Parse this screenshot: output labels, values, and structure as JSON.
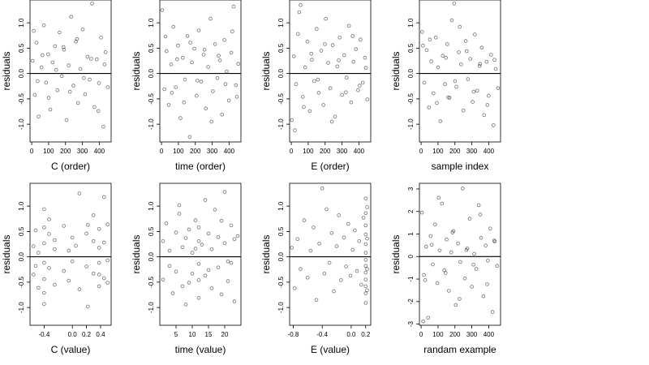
{
  "figure": {
    "ylabel": "residuals",
    "point_color": "#000000",
    "point_style": "open-circle",
    "zero_line_color": "#000000"
  },
  "chart_data": [
    {
      "type": "scatter",
      "xlabel": "C (order)",
      "ylabel": "residuals",
      "xlim": [
        -10,
        470
      ],
      "ylim": [
        -1.35,
        1.45
      ],
      "xticks": [
        0,
        100,
        200,
        300,
        400
      ],
      "xtick_labels": [
        "0",
        "100",
        "200",
        "300",
        "400"
      ],
      "yticks": [
        -1.0,
        -0.5,
        0.0,
        0.5,
        1.0
      ],
      "ytick_labels": [
        "-1.0",
        "-0.5",
        "0.0",
        "0.5",
        "1.0"
      ],
      "hline": 0,
      "x": [
        5,
        18,
        29,
        41,
        58,
        72,
        85,
        97,
        110,
        124,
        138,
        152,
        165,
        178,
        191,
        206,
        219,
        233,
        247,
        261,
        274,
        288,
        302,
        316,
        330,
        343,
        357,
        371,
        385,
        398,
        410,
        424,
        437,
        450,
        12,
        35,
        64,
        101,
        145,
        188,
        226,
        268,
        309,
        352,
        394,
        431
      ],
      "y": [
        0.25,
        -0.42,
        0.61,
        -0.85,
        0.12,
        0.95,
        -0.18,
        0.38,
        -0.71,
        0.22,
        0.54,
        -0.33,
        0.81,
        -0.05,
        0.47,
        -0.92,
        0.16,
        1.12,
        -0.24,
        0.63,
        -0.58,
        0.09,
        0.87,
        -0.41,
        0.33,
        -0.12,
        1.38,
        -0.66,
        0.28,
        -0.19,
        0.71,
        -1.05,
        0.42,
        -0.27,
        0.84,
        -0.15,
        0.36,
        -0.48,
        0.07,
        0.52,
        -0.36,
        0.68,
        -0.09,
        0.29,
        -0.74,
        0.18
      ]
    },
    {
      "type": "scatter",
      "xlabel": "time (order)",
      "ylabel": "residuals",
      "xlim": [
        -10,
        470
      ],
      "ylim": [
        -1.35,
        1.45
      ],
      "xticks": [
        0,
        100,
        200,
        300,
        400
      ],
      "xtick_labels": [
        "0",
        "100",
        "200",
        "300",
        "400"
      ],
      "yticks": [
        -1.0,
        -0.5,
        0.0,
        0.5,
        1.0
      ],
      "ytick_labels": [
        "-1.0",
        "-0.5",
        "0.0",
        "0.5",
        "1.0"
      ],
      "hline": 0,
      "x": [
        4,
        17,
        30,
        43,
        57,
        70,
        84,
        98,
        112,
        126,
        139,
        153,
        167,
        180,
        194,
        208,
        221,
        235,
        249,
        262,
        276,
        290,
        304,
        317,
        331,
        345,
        358,
        372,
        386,
        399,
        413,
        427,
        440,
        454,
        24,
        61,
        92,
        133,
        171,
        212,
        255,
        296,
        338,
        379,
        419,
        446
      ],
      "y": [
        1.25,
        -0.31,
        0.44,
        -0.62,
        0.18,
        0.92,
        -0.27,
        0.55,
        -0.88,
        0.31,
        -0.12,
        0.74,
        -1.25,
        0.22,
        0.49,
        -0.44,
        0.85,
        -0.16,
        0.37,
        -0.69,
        0.13,
        1.08,
        -0.35,
        0.58,
        -0.09,
        0.26,
        -0.81,
        0.66,
        0.04,
        -0.53,
        0.41,
        1.32,
        -0.23,
        0.19,
        0.73,
        -0.38,
        0.28,
        -0.57,
        0.61,
        -0.14,
        0.47,
        -0.95,
        0.35,
        -0.21,
        0.83,
        -0.46
      ]
    },
    {
      "type": "scatter",
      "xlabel": "E (order)",
      "ylabel": "residuals",
      "xlim": [
        -10,
        470
      ],
      "ylim": [
        -1.35,
        1.45
      ],
      "xticks": [
        0,
        100,
        200,
        300,
        400
      ],
      "xtick_labels": [
        "0",
        "100",
        "200",
        "300",
        "400"
      ],
      "yticks": [
        -1.0,
        -0.5,
        0.0,
        0.5,
        1.0
      ],
      "ytick_labels": [
        "-1.0",
        "-0.5",
        "0.0",
        "0.5",
        "1.0"
      ],
      "hline": 0,
      "x": [
        3,
        15,
        28,
        40,
        55,
        68,
        82,
        95,
        109,
        122,
        136,
        150,
        163,
        177,
        190,
        204,
        218,
        231,
        245,
        259,
        272,
        286,
        300,
        313,
        327,
        341,
        354,
        368,
        382,
        395,
        409,
        423,
        436,
        450,
        47,
        74,
        118,
        157,
        199,
        240,
        281,
        323,
        363,
        404,
        441,
        21
      ],
      "y": [
        -0.92,
        0.34,
        -0.21,
        0.78,
        1.35,
        -0.46,
        0.12,
        0.63,
        -0.74,
        0.27,
        -0.15,
        0.88,
        -0.38,
        0.45,
        -0.62,
        1.08,
        0.21,
        -0.29,
        0.56,
        -0.85,
        0.14,
        0.71,
        -0.42,
        0.36,
        -0.08,
        0.94,
        -0.57,
        0.23,
        0.48,
        -0.33,
        0.67,
        -0.18,
        0.31,
        -0.51,
        1.21,
        -0.66,
        0.39,
        -0.12,
        0.58,
        -0.95,
        0.26,
        -0.37,
        0.74,
        -0.24,
        0.11,
        -1.12
      ]
    },
    {
      "type": "scatter",
      "xlabel": "sample index",
      "ylabel": "residuals",
      "xlim": [
        -10,
        470
      ],
      "ylim": [
        -1.35,
        1.45
      ],
      "xticks": [
        0,
        100,
        200,
        300,
        400
      ],
      "xtick_labels": [
        "0",
        "100",
        "200",
        "300",
        "400"
      ],
      "yticks": [
        -1.0,
        -0.5,
        0.0,
        0.5,
        1.0
      ],
      "ytick_labels": [
        "-1.0",
        "-0.5",
        "0.0",
        "0.5",
        "1.0"
      ],
      "hline": 0,
      "x": [
        6,
        19,
        33,
        46,
        60,
        73,
        87,
        100,
        114,
        128,
        141,
        155,
        168,
        182,
        196,
        209,
        223,
        236,
        250,
        264,
        277,
        291,
        305,
        318,
        332,
        346,
        359,
        373,
        387,
        400,
        414,
        428,
        441,
        455,
        52,
        93,
        147,
        201,
        229,
        270,
        311,
        349,
        392,
        434,
        11,
        161
      ],
      "y": [
        0.82,
        -0.18,
        0.46,
        -0.67,
        0.24,
        -0.39,
        0.71,
        0.12,
        -0.94,
        0.35,
        -0.21,
        0.58,
        -0.48,
        1.05,
        1.38,
        -0.26,
        0.42,
        0.18,
        -0.73,
        0.64,
        -0.11,
        0.29,
        -0.56,
        0.77,
        -0.34,
        0.15,
        0.51,
        -0.82,
        0.23,
        -0.44,
        0.37,
        -1.02,
        0.09,
        -0.29,
        0.67,
        -0.58,
        0.31,
        -0.15,
        0.92,
        0.44,
        -0.36,
        0.19,
        -0.62,
        0.27,
        0.55,
        -0.47
      ]
    },
    {
      "type": "scatter",
      "xlabel": "C (value)",
      "ylabel": "residuals",
      "xlim": [
        -0.6,
        0.55
      ],
      "ylim": [
        -1.35,
        1.45
      ],
      "xticks": [
        -0.4,
        0.0,
        0.2,
        0.4
      ],
      "xtick_labels": [
        "-0.4",
        "0.0",
        "0.2",
        "0.4"
      ],
      "yticks": [
        -1.0,
        -0.5,
        0.0,
        0.5,
        1.0
      ],
      "ytick_labels": [
        "-1.0",
        "-0.5",
        "0.0",
        "0.5",
        "1.0"
      ],
      "hline": 0,
      "x": [
        -0.55,
        -0.55,
        -0.52,
        -0.52,
        -0.48,
        -0.48,
        -0.4,
        -0.4,
        -0.4,
        -0.4,
        -0.4,
        -0.4,
        -0.4,
        -0.33,
        -0.33,
        -0.33,
        -0.25,
        -0.25,
        -0.25,
        -0.12,
        -0.12,
        -0.05,
        -0.05,
        0.0,
        0.0,
        0.05,
        0.1,
        0.1,
        0.2,
        0.2,
        0.22,
        0.22,
        0.3,
        0.3,
        0.3,
        0.38,
        0.38,
        0.38,
        0.38,
        0.38,
        0.45,
        0.45,
        0.45,
        0.5,
        0.5,
        0.5
      ],
      "y": [
        0.21,
        -0.35,
        0.52,
        -0.18,
        0.08,
        -0.61,
        0.94,
        0.58,
        0.27,
        -0.12,
        -0.44,
        -0.71,
        -0.93,
        0.45,
        -0.22,
        0.74,
        -0.55,
        0.15,
        0.33,
        0.61,
        -0.28,
        0.12,
        -0.47,
        0.38,
        -0.09,
        0.22,
        1.25,
        -0.64,
        0.46,
        -0.19,
        -0.98,
        0.63,
        0.31,
        -0.33,
        0.82,
        0.55,
        0.18,
        -0.12,
        -0.35,
        -0.58,
        1.18,
        0.28,
        -0.42,
        0.64,
        -0.07,
        -0.51
      ]
    },
    {
      "type": "scatter",
      "xlabel": "time (value)",
      "ylabel": "residuals",
      "xlim": [
        0,
        25
      ],
      "ylim": [
        -1.35,
        1.45
      ],
      "xticks": [
        5,
        10,
        15,
        20
      ],
      "xtick_labels": [
        "5",
        "10",
        "15",
        "20"
      ],
      "yticks": [
        -1.0,
        -0.5,
        0.0,
        0.5,
        1.0
      ],
      "ytick_labels": [
        "-1.0",
        "-0.5",
        "0.0",
        "0.5",
        "1.0"
      ],
      "hline": 0,
      "x": [
        1,
        1,
        2,
        3,
        3,
        4,
        5,
        5,
        6,
        7,
        7,
        8,
        8,
        9,
        10,
        10,
        11,
        12,
        12,
        12,
        12,
        12,
        13,
        14,
        14,
        15,
        16,
        16,
        17,
        18,
        18,
        19,
        20,
        20,
        21,
        22,
        22,
        23,
        23,
        6,
        9,
        11,
        15,
        19,
        21,
        24
      ],
      "y": [
        0.31,
        -0.45,
        0.66,
        -0.18,
        0.12,
        -0.72,
        0.48,
        -0.29,
        0.85,
        0.19,
        -0.58,
        0.37,
        -0.94,
        0.54,
        0.08,
        -0.33,
        0.72,
        0.58,
        0.31,
        -0.14,
        -0.46,
        -0.81,
        0.24,
        1.12,
        -0.37,
        0.46,
        -0.62,
        0.15,
        0.93,
        -0.21,
        0.39,
        -0.74,
        1.28,
        0.27,
        -0.48,
        0.62,
        -0.12,
        0.35,
        -0.88,
        1.02,
        -0.51,
        0.16,
        -0.26,
        0.71,
        -0.09,
        0.41
      ]
    },
    {
      "type": "scatter",
      "xlabel": "E (value)",
      "ylabel": "residuals",
      "xlim": [
        -0.85,
        0.27
      ],
      "ylim": [
        -1.35,
        1.45
      ],
      "xticks": [
        -0.8,
        -0.4,
        0.0,
        0.2
      ],
      "xtick_labels": [
        "-0.8",
        "-0.4",
        "0.0",
        "0.2"
      ],
      "yticks": [
        -1.0,
        -0.5,
        0.0,
        0.5,
        1.0
      ],
      "ytick_labels": [
        "-1.0",
        "-0.5",
        "0.0",
        "0.5",
        "1.0"
      ],
      "hline": 0,
      "x": [
        -0.82,
        -0.78,
        -0.74,
        -0.7,
        -0.65,
        -0.6,
        -0.56,
        -0.52,
        -0.48,
        -0.44,
        -0.4,
        -0.37,
        -0.34,
        -0.3,
        -0.27,
        -0.24,
        -0.2,
        -0.17,
        -0.14,
        -0.1,
        -0.07,
        -0.04,
        -0.01,
        0.02,
        0.05,
        0.08,
        0.11,
        0.14,
        0.17,
        0.2,
        0.2,
        0.2,
        0.2,
        0.2,
        0.2,
        0.2,
        0.2,
        0.2,
        0.2,
        0.2,
        0.2,
        0.2,
        0.22,
        0.22,
        0.22,
        0.22
      ],
      "y": [
        0.18,
        -0.62,
        0.35,
        -0.24,
        0.72,
        -0.41,
        0.12,
        0.58,
        -0.85,
        0.26,
        1.35,
        -0.33,
        0.94,
        -0.12,
        0.47,
        -0.68,
        0.21,
        0.82,
        -0.46,
        0.38,
        -0.19,
        0.65,
        -0.37,
        0.14,
        0.52,
        -0.28,
        0.31,
        -0.55,
        0.77,
        1.15,
        0.86,
        0.62,
        0.44,
        0.25,
        0.08,
        -0.06,
        -0.18,
        -0.31,
        -0.45,
        -0.58,
        -0.72,
        -0.91,
        0.98,
        0.36,
        -0.24,
        -0.66
      ]
    },
    {
      "type": "scatter",
      "xlabel": "randam example",
      "ylabel": "residuals",
      "xlim": [
        -10,
        470
      ],
      "ylim": [
        -3.05,
        3.25
      ],
      "xticks": [
        0,
        100,
        200,
        300,
        400
      ],
      "xtick_labels": [
        "0",
        "100",
        "200",
        "300",
        "400"
      ],
      "yticks": [
        -3,
        -2,
        -1,
        0,
        1,
        2,
        3
      ],
      "ytick_labels": [
        "-3",
        "-2",
        "-1",
        "0",
        "1",
        "2",
        "3"
      ],
      "hline": 0,
      "x": [
        5,
        17,
        30,
        42,
        56,
        69,
        83,
        96,
        110,
        123,
        137,
        151,
        164,
        178,
        191,
        205,
        219,
        232,
        246,
        259,
        273,
        287,
        300,
        314,
        327,
        341,
        355,
        368,
        382,
        395,
        409,
        423,
        436,
        450,
        24,
        63,
        104,
        145,
        186,
        227,
        268,
        309,
        350,
        391,
        432,
        12
      ],
      "y": [
        1.95,
        -0.82,
        0.44,
        -2.72,
        0.91,
        -0.35,
        1.42,
        -1.18,
        0.27,
        2.35,
        -0.61,
        0.76,
        -1.52,
        0.18,
        1.13,
        -2.15,
        0.58,
        -0.24,
        3.02,
        -0.97,
        0.36,
        1.68,
        -1.34,
        0.12,
        -0.55,
        2.28,
        0.83,
        -1.76,
        0.49,
        -0.18,
        1.24,
        -2.46,
        0.67,
        -0.41,
        -1.05,
        0.52,
        2.61,
        -0.73,
        1.07,
        -1.88,
        0.29,
        -0.36,
        1.86,
        -1.23,
        0.71,
        -2.88
      ]
    }
  ]
}
